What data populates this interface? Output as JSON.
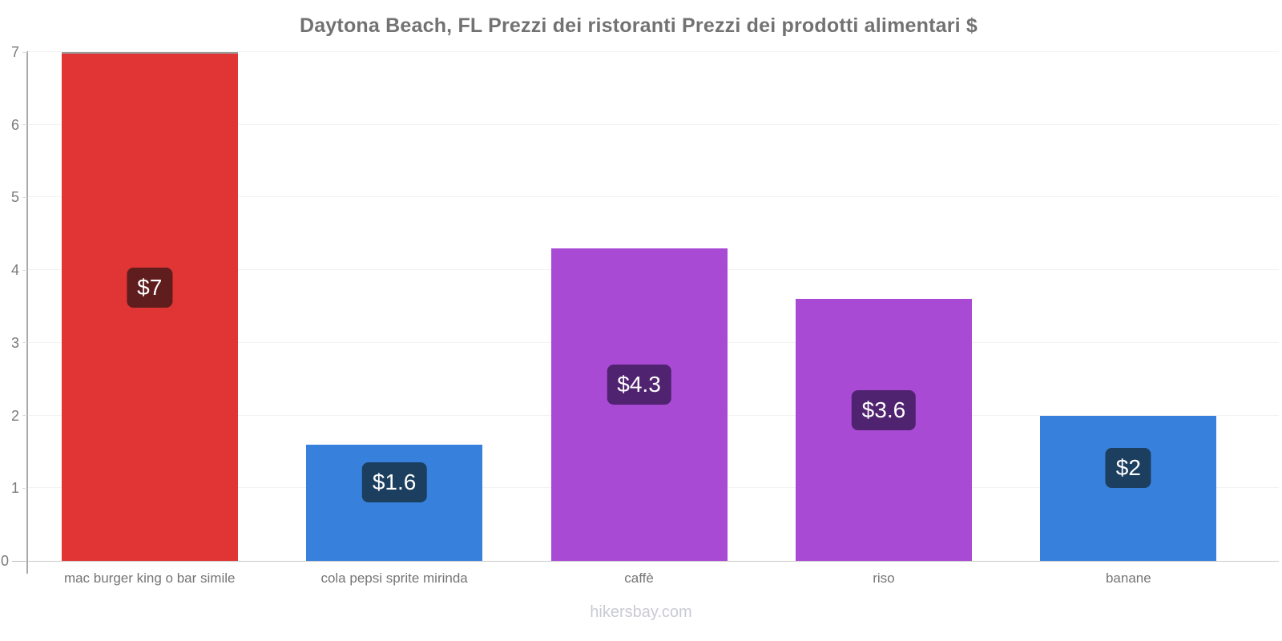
{
  "title": "Daytona Beach, FL Prezzi dei ristoranti Prezzi dei prodotti alimentari $",
  "footer": "hikersbay.com",
  "chart_data": {
    "type": "bar",
    "title": "Daytona Beach, FL Prezzi dei ristoranti Prezzi dei prodotti alimentari $",
    "categories": [
      "mac burger king o bar simile",
      "cola pepsi sprite mirinda",
      "caffè",
      "riso",
      "banane"
    ],
    "values": [
      7,
      1.6,
      4.3,
      3.6,
      2
    ],
    "value_labels": [
      "$7",
      "$1.6",
      "$4.3",
      "$3.6",
      "$2"
    ],
    "bar_colors": [
      "#e13535",
      "#3781dc",
      "#a94ad4",
      "#a94ad4",
      "#3781dc"
    ],
    "label_bg_colors": [
      "#5f1d1d",
      "#1c3e5f",
      "#4f2370",
      "#4f2370",
      "#1c3e5f"
    ],
    "xlabel": "",
    "ylabel": "",
    "ylim": [
      0,
      7
    ],
    "yticks": [
      0,
      1,
      2,
      3,
      4,
      5,
      6,
      7
    ],
    "grid": "on",
    "legend": "none"
  }
}
